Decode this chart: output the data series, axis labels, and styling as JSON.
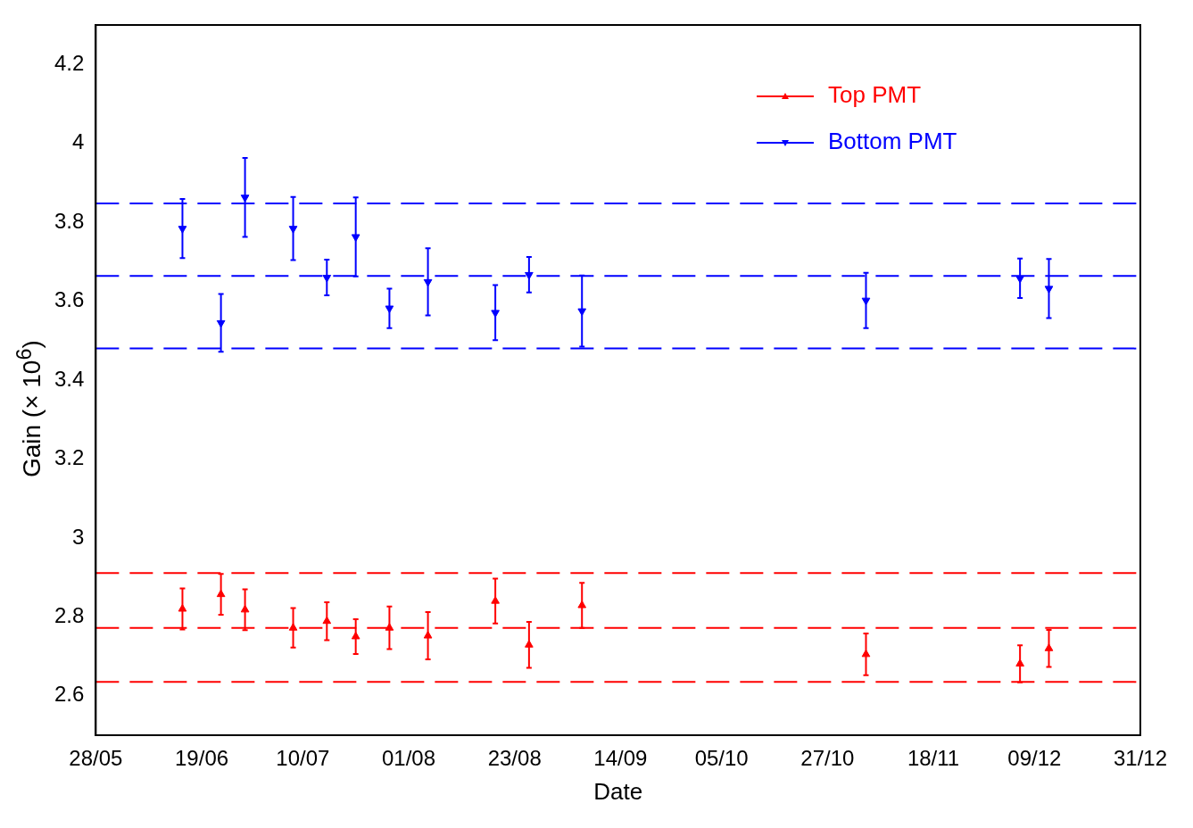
{
  "chart_data": {
    "type": "scatter",
    "xlabel": "Date",
    "ylabel": "Gain (× 10$^{6}$)",
    "xlim": [
      "--05-28",
      "--12-31"
    ],
    "xticks": [
      {
        "value": "--05-28",
        "label": "28/05"
      },
      {
        "value": "--06-19",
        "label": "19/06"
      },
      {
        "value": "--07-10",
        "label": "10/07"
      },
      {
        "value": "--08-01",
        "label": "01/08"
      },
      {
        "value": "--08-23",
        "label": "23/08"
      },
      {
        "value": "--09-14",
        "label": "14/09"
      },
      {
        "value": "--10-05",
        "label": "05/10"
      },
      {
        "value": "--10-27",
        "label": "27/10"
      },
      {
        "value": "--11-18",
        "label": "18/11"
      },
      {
        "value": "--12-09",
        "label": "09/12"
      },
      {
        "value": "--12-31",
        "label": "31/12"
      }
    ],
    "ylim": [
      2.5,
      4.3
    ],
    "yticks": [
      2.6,
      2.8,
      3,
      3.2,
      3.4,
      3.6,
      3.8,
      4,
      4.2
    ],
    "x": [
      "--06-15",
      "--06-23",
      "--06-28",
      "--07-08",
      "--07-15",
      "--07-21",
      "--07-28",
      "--08-05",
      "--08-19",
      "--08-26",
      "--09-06",
      "--11-04",
      "--12-06",
      "--12-12"
    ],
    "series": [
      {
        "name": "Top PMT",
        "color": "#ff0000",
        "marker": "triangle",
        "values": [
          2.82,
          2.857,
          2.818,
          2.772,
          2.789,
          2.75,
          2.772,
          2.752,
          2.84,
          2.729,
          2.829,
          2.705,
          2.681,
          2.72
        ],
        "errors": [
          0.052,
          0.052,
          0.052,
          0.05,
          0.048,
          0.044,
          0.054,
          0.06,
          0.057,
          0.058,
          0.057,
          0.053,
          0.047,
          0.047
        ]
      },
      {
        "name": "Bottom PMT",
        "color": "#0000ff",
        "marker": "triangle-down",
        "values": [
          3.784,
          3.545,
          3.863,
          3.784,
          3.66,
          3.763,
          3.582,
          3.649,
          3.571,
          3.667,
          3.575,
          3.602,
          3.658,
          3.632
        ],
        "errors": [
          0.075,
          0.073,
          0.1,
          0.08,
          0.045,
          0.1,
          0.05,
          0.085,
          0.07,
          0.045,
          0.09,
          0.07,
          0.05,
          0.075
        ]
      }
    ],
    "ref_lines": [
      {
        "axis": "y",
        "value": 3.848,
        "color": "#0000ff",
        "line_style": "dashed"
      },
      {
        "axis": "y",
        "value": 3.664,
        "color": "#0000ff",
        "line_style": "dashed"
      },
      {
        "axis": "y",
        "value": 3.48,
        "color": "#0000ff",
        "line_style": "dashed"
      },
      {
        "axis": "y",
        "value": 2.911,
        "color": "#ff0000",
        "line_style": "dashed"
      },
      {
        "axis": "y",
        "value": 2.772,
        "color": "#ff0000",
        "line_style": "dashed"
      },
      {
        "axis": "y",
        "value": 2.635,
        "color": "#ff0000",
        "line_style": "dashed"
      }
    ],
    "legend": "top right",
    "grid": false
  }
}
